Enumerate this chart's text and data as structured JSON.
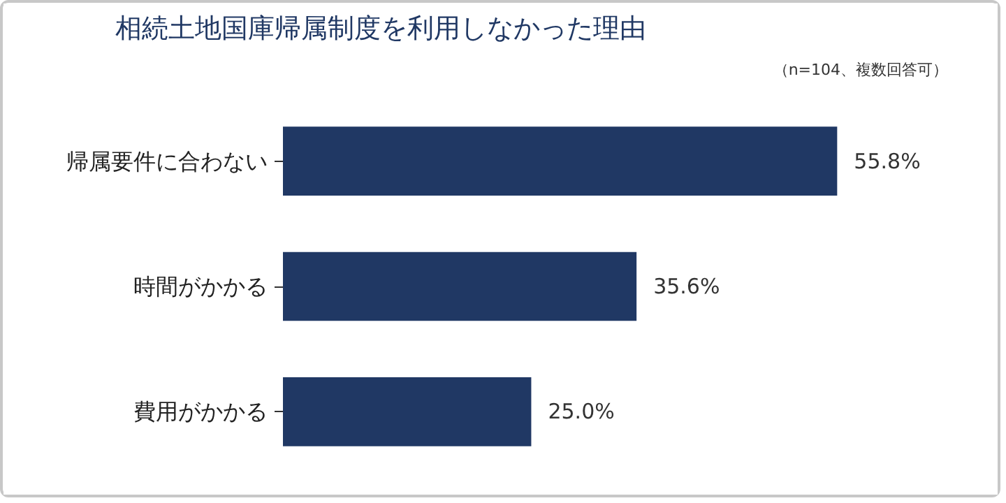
{
  "chart_data": {
    "type": "bar",
    "orientation": "horizontal",
    "title": "相続土地国庫帰属制度を利用しなかった理由",
    "subtitle": "（n=104、複数回答可）",
    "categories": [
      "帰属要件に合わない",
      "時間がかかる",
      "費用がかかる"
    ],
    "values": [
      55.8,
      35.6,
      25.0
    ],
    "color": "#203864",
    "data_labels": true,
    "value_labels": [
      "55.8%",
      "35.6%",
      "25.0%"
    ],
    "grid": false
  }
}
